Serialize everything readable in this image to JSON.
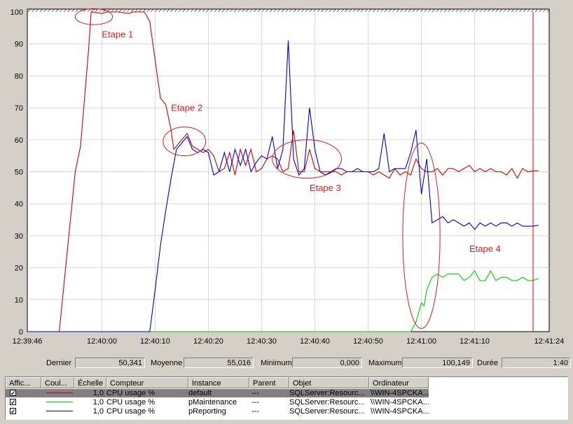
{
  "chart_data": {
    "type": "line",
    "title": "",
    "ylim": [
      0,
      100
    ],
    "y_ticks": [
      "0",
      "10",
      "20",
      "30",
      "40",
      "50",
      "60",
      "70",
      "80",
      "90",
      "100"
    ],
    "x_ticks": [
      "12:39:46",
      "12:40:00",
      "12:40:10",
      "12:40:20",
      "12:40:30",
      "12:40:40",
      "12:40:50",
      "12:41:00",
      "12:41:10",
      "12:41:24"
    ],
    "xlim_seconds": [
      0,
      98
    ],
    "x_tick_seconds": [
      0,
      14,
      24,
      34,
      44,
      54,
      64,
      74,
      84,
      98
    ],
    "grid": true,
    "series": [
      {
        "name": "default",
        "color": "#cc0000",
        "points": [
          [
            0,
            0
          ],
          [
            6,
            0
          ],
          [
            9,
            50
          ],
          [
            10,
            58
          ],
          [
            11.5,
            88
          ],
          [
            12,
            100
          ],
          [
            14,
            99.5
          ],
          [
            15,
            100
          ],
          [
            17,
            100
          ],
          [
            19,
            99.5
          ],
          [
            20,
            100
          ],
          [
            22,
            100
          ],
          [
            23,
            97
          ],
          [
            24,
            85
          ],
          [
            25,
            73
          ],
          [
            26,
            71
          ],
          [
            27,
            63
          ],
          [
            27.5,
            57
          ],
          [
            28.5,
            59
          ],
          [
            30,
            62
          ],
          [
            31,
            58
          ],
          [
            32,
            57
          ],
          [
            33,
            56
          ],
          [
            34,
            57
          ],
          [
            35,
            55
          ],
          [
            36,
            50
          ],
          [
            37,
            51
          ],
          [
            38,
            56
          ],
          [
            39,
            49
          ],
          [
            40,
            57
          ],
          [
            41,
            52
          ],
          [
            42,
            57
          ],
          [
            43,
            50
          ],
          [
            44,
            51
          ],
          [
            45,
            54
          ],
          [
            46,
            55
          ],
          [
            47,
            54
          ],
          [
            48,
            50
          ],
          [
            49,
            51
          ],
          [
            50,
            63
          ],
          [
            51,
            50
          ],
          [
            52,
            50
          ],
          [
            53,
            57
          ],
          [
            54,
            51
          ],
          [
            55,
            50
          ],
          [
            56,
            50
          ],
          [
            57,
            50
          ],
          [
            58,
            50
          ],
          [
            59,
            49
          ],
          [
            60,
            50
          ],
          [
            61,
            50
          ],
          [
            62,
            50
          ],
          [
            63,
            50
          ],
          [
            64,
            50
          ],
          [
            65,
            49
          ],
          [
            66,
            50
          ],
          [
            67,
            49
          ],
          [
            68,
            48
          ],
          [
            69,
            51
          ],
          [
            70,
            49
          ],
          [
            71,
            50
          ],
          [
            72,
            49
          ],
          [
            73,
            54
          ],
          [
            74,
            51
          ],
          [
            75,
            50
          ],
          [
            76,
            50
          ],
          [
            77,
            51
          ],
          [
            78,
            49
          ],
          [
            79,
            51
          ],
          [
            80,
            51
          ],
          [
            81,
            50
          ],
          [
            82,
            51
          ],
          [
            83,
            52
          ],
          [
            84,
            50
          ],
          [
            85,
            51
          ],
          [
            86,
            50
          ],
          [
            87,
            51
          ],
          [
            88,
            50
          ],
          [
            89,
            50
          ],
          [
            90,
            49
          ],
          [
            91,
            51
          ],
          [
            92,
            48
          ],
          [
            93,
            51
          ],
          [
            94,
            50
          ],
          [
            95,
            50.3
          ],
          [
            96,
            50.3
          ]
        ]
      },
      {
        "name": "pMaintenance",
        "color": "#00cc00",
        "points": [
          [
            0,
            0
          ],
          [
            72,
            0
          ],
          [
            73,
            3
          ],
          [
            74,
            9
          ],
          [
            74.5,
            8
          ],
          [
            75,
            13
          ],
          [
            76,
            17
          ],
          [
            77,
            18
          ],
          [
            78,
            17
          ],
          [
            79,
            18
          ],
          [
            80,
            18
          ],
          [
            81,
            18
          ],
          [
            82,
            16
          ],
          [
            83,
            17
          ],
          [
            84,
            19
          ],
          [
            85,
            16
          ],
          [
            86,
            16
          ],
          [
            87,
            19
          ],
          [
            88,
            16
          ],
          [
            89,
            17
          ],
          [
            90,
            17
          ],
          [
            91,
            16
          ],
          [
            92,
            16
          ],
          [
            93,
            17
          ],
          [
            94,
            16
          ],
          [
            95,
            16
          ],
          [
            96,
            16.7
          ]
        ]
      },
      {
        "name": "pReporting",
        "color": "#0000cc",
        "points": [
          [
            0,
            0
          ],
          [
            23,
            0
          ],
          [
            24,
            13
          ],
          [
            25,
            27
          ],
          [
            26,
            38
          ],
          [
            27,
            48
          ],
          [
            28,
            57
          ],
          [
            29,
            59
          ],
          [
            30,
            61
          ],
          [
            31,
            57
          ],
          [
            32,
            56
          ],
          [
            33,
            57
          ],
          [
            34,
            56
          ],
          [
            35,
            49
          ],
          [
            36,
            50
          ],
          [
            37,
            56
          ],
          [
            38,
            50
          ],
          [
            39,
            57
          ],
          [
            40,
            52
          ],
          [
            41,
            57
          ],
          [
            42,
            50
          ],
          [
            43,
            53
          ],
          [
            44,
            55
          ],
          [
            45,
            54
          ],
          [
            46,
            61
          ],
          [
            47,
            51
          ],
          [
            48,
            57
          ],
          [
            49,
            91
          ],
          [
            50,
            54
          ],
          [
            51,
            49
          ],
          [
            52,
            51
          ],
          [
            53,
            70
          ],
          [
            54,
            57
          ],
          [
            55,
            50
          ],
          [
            56,
            49
          ],
          [
            57,
            50
          ],
          [
            58,
            51
          ],
          [
            59,
            51
          ],
          [
            60,
            50
          ],
          [
            61,
            50
          ],
          [
            62,
            51
          ],
          [
            63,
            50
          ],
          [
            64,
            50
          ],
          [
            65,
            50
          ],
          [
            66,
            51
          ],
          [
            67,
            62
          ],
          [
            68,
            50
          ],
          [
            69,
            51
          ],
          [
            70,
            51
          ],
          [
            71,
            51
          ],
          [
            72,
            56
          ],
          [
            73,
            63
          ],
          [
            74,
            43
          ],
          [
            75,
            54
          ],
          [
            76,
            34
          ],
          [
            77,
            35
          ],
          [
            78,
            36
          ],
          [
            79,
            34
          ],
          [
            80,
            35
          ],
          [
            81,
            34
          ],
          [
            82,
            33
          ],
          [
            83,
            34
          ],
          [
            84,
            32
          ],
          [
            85,
            34
          ],
          [
            86,
            33
          ],
          [
            87,
            34
          ],
          [
            88,
            33
          ],
          [
            89,
            34
          ],
          [
            90,
            34
          ],
          [
            91,
            33
          ],
          [
            92,
            34
          ],
          [
            93,
            33
          ],
          [
            94,
            33
          ],
          [
            95,
            33
          ],
          [
            96,
            33.3
          ]
        ]
      }
    ],
    "annotations": [
      {
        "text": "Etape 1",
        "x": 14,
        "y": 92
      },
      {
        "text": "Etape 2",
        "x": 27,
        "y": 69
      },
      {
        "text": "Etape 3",
        "x": 53,
        "y": 44
      },
      {
        "text": "Etape 4",
        "x": 83,
        "y": 25
      }
    ],
    "annotation_ellipses": [
      {
        "cx": 12.5,
        "cy": 98.5,
        "rx": 3.5,
        "ry": 2.5
      },
      {
        "cx": 29.5,
        "cy": 59.5,
        "rx": 4,
        "ry": 4.5
      },
      {
        "cx": 52.5,
        "cy": 54,
        "rx": 6.5,
        "ry": 6
      },
      {
        "cx": 74,
        "cy": 30,
        "rx": 3.5,
        "ry": 29
      }
    ],
    "annotation_color": "#cc2222"
  },
  "stats": {
    "last_label": "Dernier",
    "last_value": "50,341",
    "avg_label": "Moyenne",
    "avg_value": "55,016",
    "min_label": "Minimum",
    "min_value": "0,000",
    "max_label": "Maximum",
    "max_value": "100,149",
    "dur_label": "Durée",
    "dur_value": "1:40"
  },
  "legend": {
    "headers": [
      "Affic...",
      "Coul...",
      "Échelle",
      "Compteur",
      "Instance",
      "Parent",
      "Objet",
      "Ordinateur"
    ],
    "rows": [
      {
        "checked": "✓",
        "color": "#cc0000",
        "scale": "1,0",
        "counter": "CPU usage %",
        "instance": "default",
        "parent": "---",
        "object": "SQLServer:Resourc...",
        "computer": "\\\\WIN-4SPCKA..."
      },
      {
        "checked": "✓",
        "color": "#00cc00",
        "scale": "1,0",
        "counter": "CPU usage %",
        "instance": "pMaintenance",
        "parent": "---",
        "object": "SQLServer:Resourc...",
        "computer": "\\\\WIN-4SPCKA..."
      },
      {
        "checked": "✓",
        "color": "#0000cc",
        "scale": "1,0",
        "counter": "CPU usage %",
        "instance": "pReporting",
        "parent": "---",
        "object": "SQLServer:Resourc...",
        "computer": "\\\\WIN-4SPCKA..."
      }
    ]
  }
}
